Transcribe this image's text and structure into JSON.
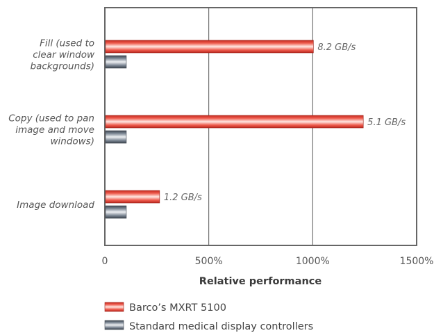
{
  "chart_data": {
    "type": "bar",
    "orientation": "horizontal",
    "categories": [
      [
        "Fill (used to",
        "clear window",
        "backgrounds)"
      ],
      [
        "Copy (used to pan",
        "image and move",
        "windows)"
      ],
      [
        "Image download"
      ]
    ],
    "series": [
      {
        "name": "Barco’s MXRT 5100",
        "values": [
          1000,
          1240,
          260
        ],
        "value_labels": [
          "8.2 GB/s",
          "5.1 GB/s",
          "1.2 GB/s"
        ],
        "color": "#e8473a"
      },
      {
        "name": "Standard medical display controllers",
        "values": [
          100,
          100,
          100
        ],
        "color": "#7a8591"
      }
    ],
    "xlim": [
      0,
      1500
    ],
    "xticks": [
      0,
      500,
      1000,
      1500
    ],
    "xtick_labels": [
      "0",
      "500%",
      "1000%",
      "1500%"
    ],
    "xlabel": "Relative performance",
    "grid": true,
    "legend_position": "bottom-left"
  }
}
